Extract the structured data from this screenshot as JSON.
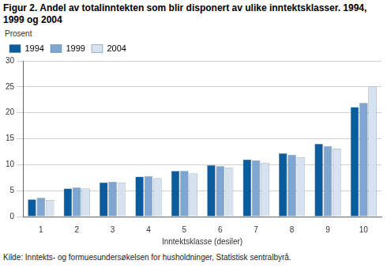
{
  "chart_data": {
    "type": "bar",
    "title": "Figur 2. Andel av totalinntekten som blir disponert av ulike inntektsklasser. 1994, 1999 og 2004",
    "y_label": "Prosent",
    "x_label": "Inntektsklasse (desiler)",
    "source": "Kilde: Inntekts- og formuesundersøkelsen for husholdninger, Statistisk sentralbyrå.",
    "categories": [
      "1",
      "2",
      "3",
      "4",
      "5",
      "6",
      "7",
      "8",
      "9",
      "10"
    ],
    "series": [
      {
        "name": "1994",
        "color": "#0b5c9e",
        "values": [
          3.3,
          5.4,
          6.6,
          7.7,
          8.8,
          9.9,
          11.0,
          12.2,
          14.0,
          21.1
        ]
      },
      {
        "name": "1999",
        "color": "#7fa6d0",
        "values": [
          3.6,
          5.6,
          6.7,
          7.8,
          8.8,
          9.7,
          10.8,
          11.9,
          13.6,
          21.9
        ]
      },
      {
        "name": "2004",
        "color": "#d6e2f0",
        "values": [
          3.2,
          5.4,
          6.5,
          7.4,
          8.3,
          9.4,
          10.3,
          11.4,
          13.1,
          25.0
        ]
      }
    ],
    "ylim": [
      0,
      30
    ],
    "yticks": [
      0,
      5,
      10,
      15,
      20,
      25,
      30
    ],
    "grid": true,
    "legend": "top-left"
  }
}
